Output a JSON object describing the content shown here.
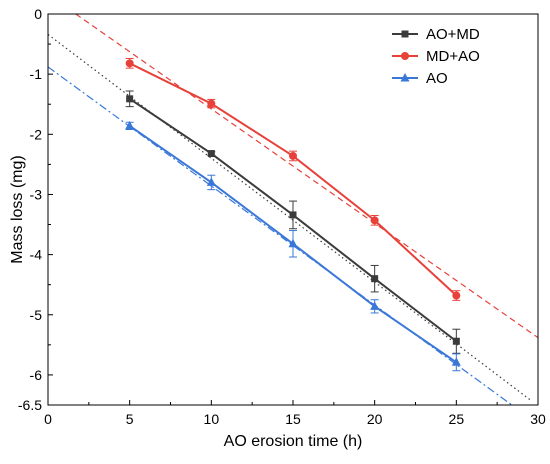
{
  "chart_data": {
    "type": "line",
    "xlabel": "AO erosion time (h)",
    "ylabel": "Mass loss (mg)",
    "xlim": [
      0,
      30
    ],
    "ylim": [
      -6.5,
      0
    ],
    "xticks": [
      "0",
      "5",
      "10",
      "15",
      "20",
      "25",
      "30"
    ],
    "yticks": [
      "0",
      "-1",
      "-2",
      "-3",
      "-4",
      "-5",
      "-6",
      "-6.5"
    ],
    "legend_position": "top-right",
    "series": [
      {
        "name": "AO+MD",
        "color": "#3b3b3b",
        "marker": "square",
        "x": [
          5,
          10,
          15,
          20,
          25
        ],
        "y": [
          -1.41,
          -2.32,
          -3.34,
          -4.4,
          -5.44
        ],
        "err": [
          0.13,
          0.03,
          0.23,
          0.22,
          0.2
        ],
        "fit": {
          "x": [
            0,
            29.5
          ],
          "y": [
            -0.34,
            -6.41
          ],
          "style": "dotted"
        }
      },
      {
        "name": "MD+AO",
        "color": "#e8413a",
        "marker": "circle",
        "x": [
          5,
          10,
          15,
          20,
          25
        ],
        "y": [
          -0.82,
          -1.49,
          -2.36,
          -3.43,
          -4.68
        ],
        "err": [
          0.08,
          0.07,
          0.08,
          0.08,
          0.08
        ],
        "fit": {
          "x": [
            1.7,
            30
          ],
          "y": [
            0,
            -5.38
          ],
          "style": "dashed"
        }
      },
      {
        "name": "AO",
        "color": "#3a78d8",
        "marker": "triangle",
        "x": [
          5,
          10,
          15,
          20,
          25
        ],
        "y": [
          -1.86,
          -2.8,
          -3.82,
          -4.86,
          -5.79
        ],
        "err": [
          0.06,
          0.12,
          0.22,
          0.11,
          0.14
        ],
        "fit": {
          "x": [
            0,
            28.4
          ],
          "y": [
            -0.88,
            -6.5
          ],
          "style": "dashdot"
        }
      }
    ]
  }
}
